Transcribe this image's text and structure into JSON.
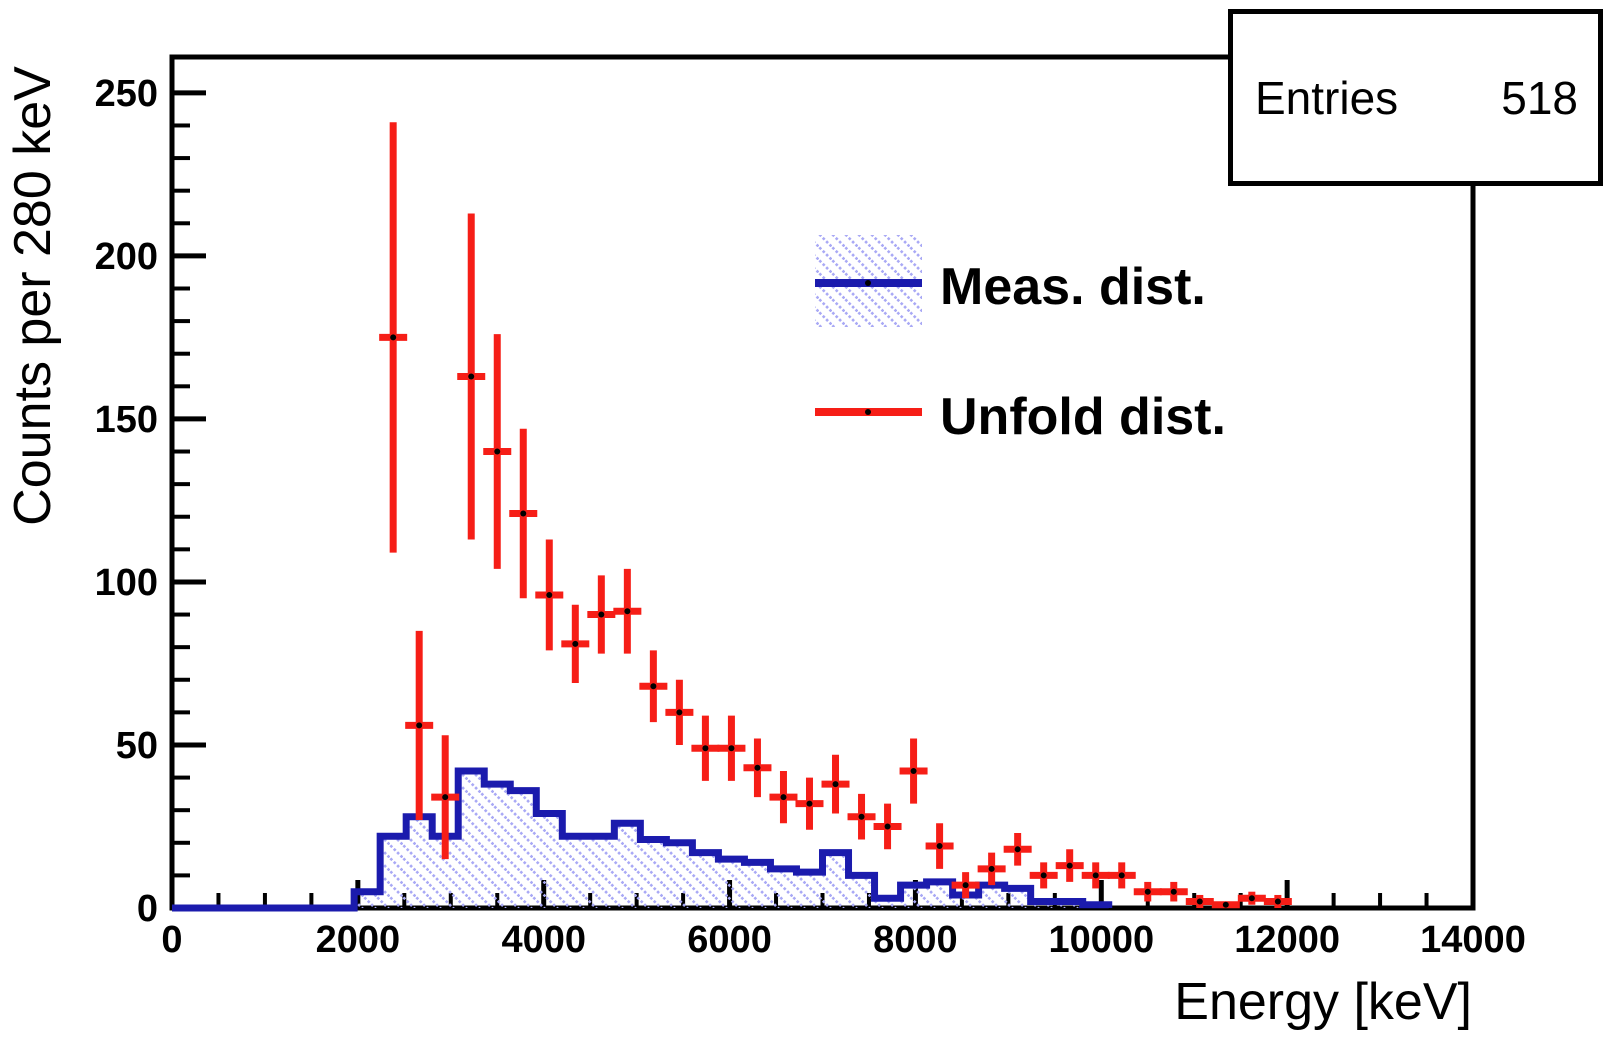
{
  "chart_data": {
    "type": "histogram",
    "title": "",
    "xlabel": "Energy [keV]",
    "ylabel": "Counts per 280 keV",
    "xlim": [
      0,
      14000
    ],
    "ylim": [
      0,
      261
    ],
    "x_major_ticks": [
      0,
      2000,
      4000,
      6000,
      8000,
      10000,
      12000,
      14000
    ],
    "x_minor_step": 500,
    "y_major_ticks": [
      0,
      50,
      100,
      150,
      200,
      250
    ],
    "y_minor_step": 10,
    "grid": false,
    "bin_width_kev": 280,
    "stats": {
      "label": "Entries",
      "value": "518"
    },
    "legend": [
      {
        "label": "Meas. dist.",
        "type": "hatched-histogram"
      },
      {
        "label": "Unfold dist.",
        "type": "errorbar"
      }
    ],
    "series": [
      {
        "name": "Meas. dist.",
        "type": "step-histogram",
        "first_bin_low_edge": 1960,
        "bin_width": 280,
        "values": [
          5,
          22,
          28,
          22,
          42,
          38,
          36,
          29,
          22,
          22,
          26,
          21,
          20,
          17,
          15,
          14,
          12,
          11,
          17,
          10,
          3,
          7,
          8,
          4,
          7,
          6,
          2,
          2,
          1
        ]
      },
      {
        "name": "Unfold dist.",
        "type": "errorbar-points",
        "x": [
          2380,
          2660,
          2940,
          3220,
          3500,
          3780,
          4060,
          4340,
          4620,
          4900,
          5180,
          5460,
          5740,
          6020,
          6300,
          6580,
          6860,
          7140,
          7420,
          7700,
          7980,
          8260,
          8540,
          8820,
          9100,
          9380,
          9660,
          9940,
          10220,
          10500,
          10780,
          11060,
          11340,
          11620,
          11900
        ],
        "y": [
          175,
          56,
          34,
          163,
          140,
          121,
          96,
          81,
          90,
          91,
          68,
          60,
          49,
          49,
          43,
          34,
          32,
          38,
          28,
          25,
          42,
          19,
          7,
          12,
          18,
          10,
          13,
          10,
          10,
          5,
          5,
          2,
          1,
          3,
          2
        ],
        "yerr": [
          66,
          29,
          19,
          50,
          36,
          26,
          17,
          12,
          12,
          13,
          11,
          10,
          10,
          10,
          9,
          8,
          8,
          9,
          7,
          7,
          10,
          7,
          4,
          5,
          5,
          4,
          5,
          4,
          4,
          3,
          3,
          2,
          1,
          2,
          2
        ]
      }
    ],
    "colors": {
      "meas_line": "#1b1bad",
      "meas_hatch": "#a9a9f5",
      "unfold": "#f61e17",
      "frame": "#000000",
      "marker_dot": "#000000"
    }
  }
}
